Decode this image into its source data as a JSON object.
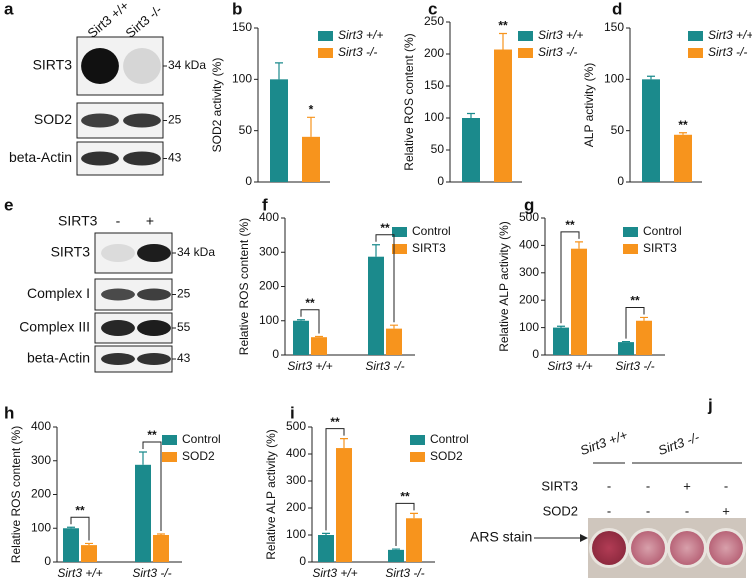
{
  "blots": [
    {
      "label": "a",
      "lanes": [
        "Sirt3 +/+",
        "Sirt3 -/-"
      ],
      "rows": [
        {
          "name": "SIRT3",
          "marker": "34 kDa"
        },
        {
          "name": "SOD2",
          "marker": "25"
        },
        {
          "name": "beta-Actin",
          "marker": "43"
        }
      ]
    },
    {
      "label": "e",
      "treatment": "SIRT3",
      "lanes": [
        "-",
        "+"
      ],
      "rows": [
        {
          "name": "SIRT3",
          "marker": "34 kDa"
        },
        {
          "name": "Complex I",
          "marker": "25"
        },
        {
          "name": "Complex III",
          "marker": "55"
        },
        {
          "name": "beta-Actin",
          "marker": "43"
        }
      ]
    }
  ],
  "chart_data": [
    {
      "label": "b",
      "type": "bar",
      "y_label": "SOD2 activity (%)",
      "series": [
        {
          "name": "Sirt3 +/+",
          "color": "#1b8a8c",
          "values": [
            100
          ],
          "errors": [
            16
          ]
        },
        {
          "name": "Sirt3 -/-",
          "color": "#f7941d",
          "values": [
            44
          ],
          "errors": [
            19
          ],
          "significance": "*"
        }
      ],
      "ylim": [
        0,
        150
      ],
      "yticks": [
        0,
        50,
        100,
        150
      ]
    },
    {
      "label": "c",
      "type": "bar",
      "y_label": "Relative ROS content (%)",
      "series": [
        {
          "name": "Sirt3 +/+",
          "color": "#1b8a8c",
          "values": [
            100
          ],
          "errors": [
            7
          ]
        },
        {
          "name": "Sirt3 -/-",
          "color": "#f7941d",
          "values": [
            207
          ],
          "errors": [
            25
          ],
          "significance": "**"
        }
      ],
      "ylim": [
        0,
        250
      ],
      "yticks": [
        0,
        50,
        100,
        150,
        200,
        250
      ]
    },
    {
      "label": "d",
      "type": "bar",
      "y_label": "ALP activity (%)",
      "series": [
        {
          "name": "Sirt3 +/+",
          "color": "#1b8a8c",
          "values": [
            100
          ],
          "errors": [
            3
          ]
        },
        {
          "name": "Sirt3 -/-",
          "color": "#f7941d",
          "values": [
            46
          ],
          "errors": [
            2
          ],
          "significance": "**"
        }
      ],
      "ylim": [
        0,
        150
      ],
      "yticks": [
        0,
        50,
        100,
        150
      ]
    },
    {
      "label": "f",
      "type": "bar",
      "y_label": "Relative ROS content (%)",
      "categories": [
        "Sirt3 +/+",
        "Sirt3 -/-"
      ],
      "series": [
        {
          "name": "Control",
          "color": "#1b8a8c",
          "values": [
            100,
            287
          ],
          "errors": [
            3,
            35
          ]
        },
        {
          "name": "SIRT3",
          "color": "#f7941d",
          "values": [
            52,
            77
          ],
          "errors": [
            2,
            10
          ]
        }
      ],
      "significance": [
        "**",
        "**"
      ],
      "ylim": [
        0,
        400
      ],
      "yticks": [
        0,
        100,
        200,
        300,
        400
      ]
    },
    {
      "label": "g",
      "type": "bar",
      "y_label": "Relative ALP activity (%)",
      "categories": [
        "Sirt3 +/+",
        "Sirt3 -/-"
      ],
      "series": [
        {
          "name": "Control",
          "color": "#1b8a8c",
          "values": [
            100,
            47
          ],
          "errors": [
            5,
            2
          ]
        },
        {
          "name": "SIRT3",
          "color": "#f7941d",
          "values": [
            388,
            125
          ],
          "errors": [
            25,
            12
          ]
        }
      ],
      "significance": [
        "**",
        "**"
      ],
      "ylim": [
        0,
        500
      ],
      "yticks": [
        0,
        100,
        200,
        300,
        400,
        500
      ]
    },
    {
      "label": "h",
      "type": "bar",
      "y_label": "Relative ROS content (%)",
      "categories": [
        "Sirt3 +/+",
        "Sirt3 -/-"
      ],
      "series": [
        {
          "name": "Control",
          "color": "#1b8a8c",
          "values": [
            100,
            288
          ],
          "errors": [
            3,
            38
          ]
        },
        {
          "name": "SOD2",
          "color": "#f7941d",
          "values": [
            50,
            80
          ],
          "errors": [
            5,
            3
          ]
        }
      ],
      "significance": [
        "**",
        "**"
      ],
      "ylim": [
        0,
        400
      ],
      "yticks": [
        0,
        100,
        200,
        300,
        400
      ]
    },
    {
      "label": "i",
      "type": "bar",
      "y_label": "Relative ALP activity (%)",
      "categories": [
        "Sirt3 +/+",
        "Sirt3 -/-"
      ],
      "series": [
        {
          "name": "Control",
          "color": "#1b8a8c",
          "values": [
            100,
            45
          ],
          "errors": [
            6,
            3
          ]
        },
        {
          "name": "SOD2",
          "color": "#f7941d",
          "values": [
            422,
            162
          ],
          "errors": [
            35,
            18
          ]
        }
      ],
      "significance": [
        "**",
        "**"
      ],
      "ylim": [
        0,
        500
      ],
      "yticks": [
        0,
        100,
        200,
        300,
        400,
        500
      ]
    }
  ],
  "stain": {
    "label": "j",
    "groups": [
      "Sirt3 +/+",
      "Sirt3 -/-"
    ],
    "rows": [
      {
        "name": "SIRT3",
        "cells": [
          "-",
          "-",
          "+",
          "-"
        ]
      },
      {
        "name": "SOD2",
        "cells": [
          "-",
          "-",
          "-",
          "+"
        ]
      }
    ],
    "readout": "ARS stain"
  }
}
